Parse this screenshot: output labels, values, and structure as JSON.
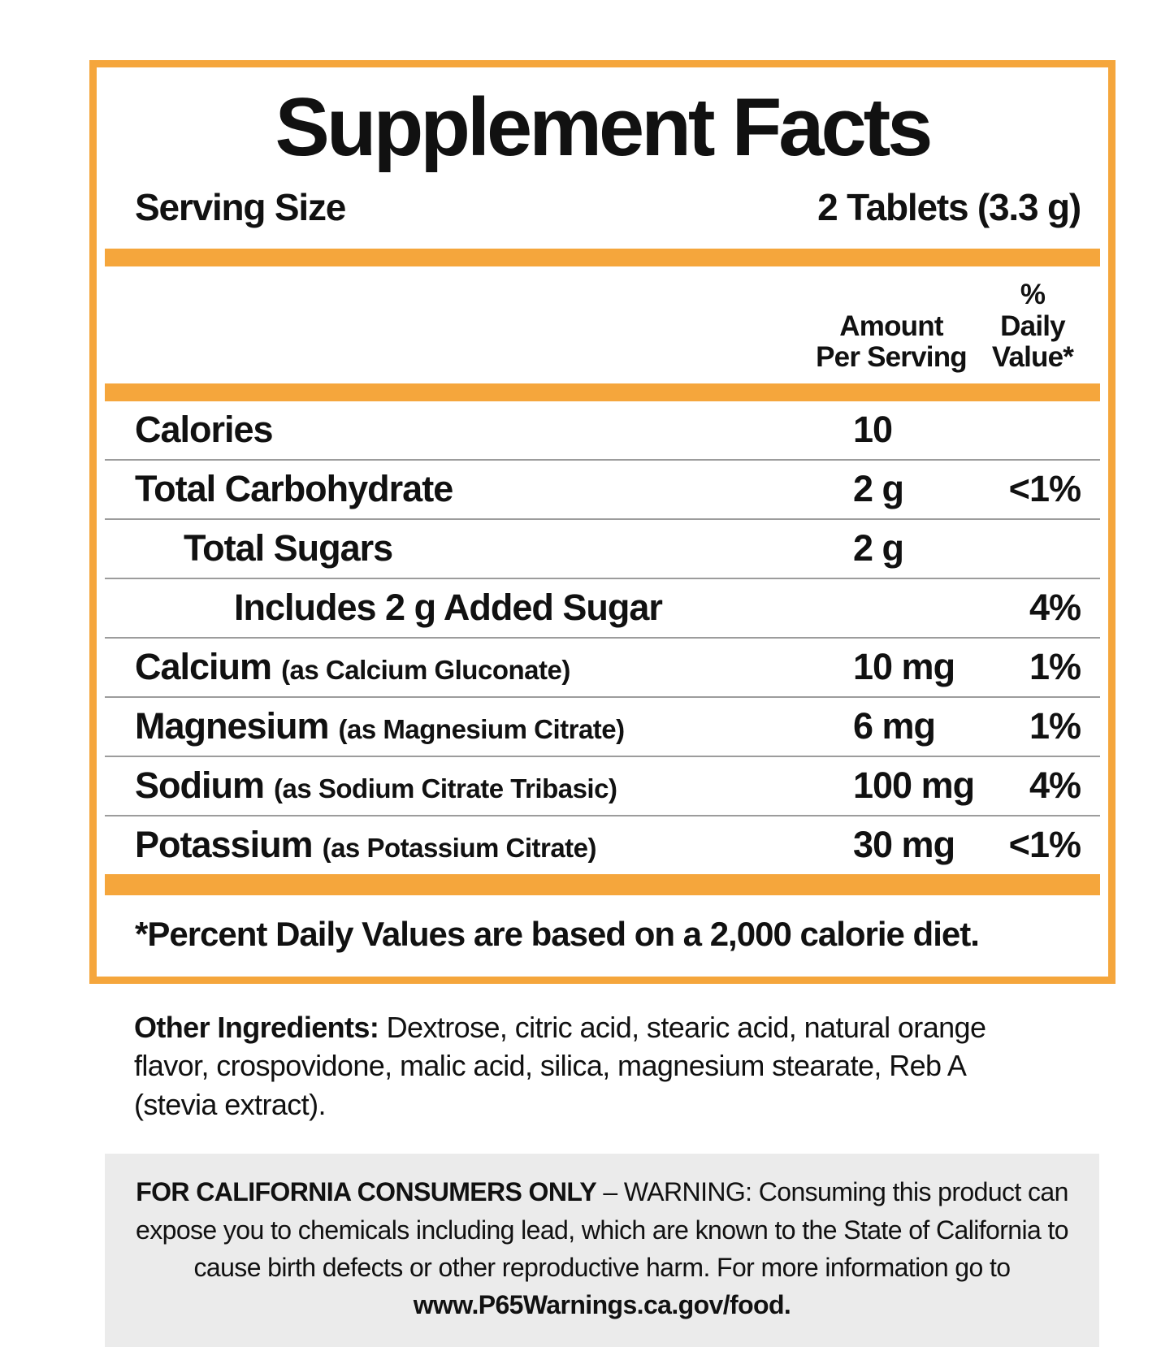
{
  "panel": {
    "title": "Supplement Facts",
    "serving_label": "Serving Size",
    "serving_value": "2 Tablets (3.3 g)",
    "col_headers": {
      "amount_line1": "Amount",
      "amount_line2": "Per Serving",
      "dv_line1": "% Daily",
      "dv_line2": "Value*"
    },
    "footnote": "*Percent Daily Values are based on a 2,000 calorie diet."
  },
  "table": {
    "rows": [
      {
        "label": "Calories",
        "sub": "",
        "amount": "10",
        "dv": "",
        "indent": 0
      },
      {
        "label": "Total Carbohydrate",
        "sub": "",
        "amount": "2 g",
        "dv": "<1%",
        "indent": 0
      },
      {
        "label": "Total Sugars",
        "sub": "",
        "amount": "2 g",
        "dv": "",
        "indent": 1
      },
      {
        "label": "Includes 2 g Added Sugar",
        "sub": "",
        "amount": "",
        "dv": "4%",
        "indent": 2
      },
      {
        "label": "Calcium",
        "sub": "(as Calcium Gluconate)",
        "amount": "10 mg",
        "dv": "1%",
        "indent": 0
      },
      {
        "label": "Magnesium",
        "sub": "(as Magnesium Citrate)",
        "amount": "6 mg",
        "dv": "1%",
        "indent": 0
      },
      {
        "label": "Sodium",
        "sub": "(as Sodium Citrate Tribasic)",
        "amount": "100 mg",
        "dv": "4%",
        "indent": 0
      },
      {
        "label": "Potassium",
        "sub": "(as Potassium Citrate)",
        "amount": "30 mg",
        "dv": "<1%",
        "indent": 0
      }
    ]
  },
  "other_ingredients": {
    "label": "Other Ingredients:",
    "text": " Dextrose, citric acid, stearic acid, natural orange flavor, crospovidone, malic acid, silica, magnesium stearate, Reb A (stevia extract)."
  },
  "california_warning": {
    "bold_intro": "FOR CALIFORNIA CONSUMERS ONLY",
    "text": " – WARNING: Consuming this product can expose you to chemicals including lead, which are known to the State of California to cause birth defects or other reproductive harm. For more information go to ",
    "bold_link": "www.P65Warnings.ca.gov/food."
  },
  "colors": {
    "accent_orange": "#F5A63C",
    "divider_gray": "#9C9C9C",
    "warning_bg": "#EBEBEB"
  }
}
